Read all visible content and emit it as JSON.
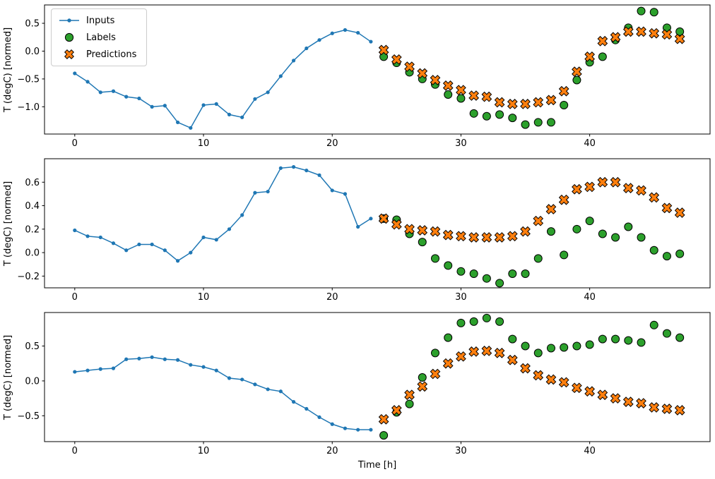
{
  "figure": {
    "xlabel": "Time [h]",
    "background": "#ffffff",
    "axes_edge_color": "#000000",
    "legend": [
      {
        "label": "Inputs",
        "marker": "line-with-dot"
      },
      {
        "label": "Labels",
        "marker": "filled-circle"
      },
      {
        "label": "Predictions",
        "marker": "filled-x"
      }
    ],
    "colors": {
      "inputs": "#1f77b4",
      "labels": "#2ca02c",
      "predictions": "#ff7f0e",
      "marker_edge": "#000000"
    }
  },
  "chart_data": [
    {
      "type": "line",
      "title": "",
      "ylabel": "T (degC) [normed]",
      "xlim": [
        -2.35,
        49.35
      ],
      "ylim": [
        -1.49,
        0.83
      ],
      "xticks": [
        0,
        10,
        20,
        30,
        40
      ],
      "yticks": [
        0.5,
        0.0,
        -0.5,
        -1.0
      ],
      "grid": false,
      "series": [
        {
          "name": "Inputs",
          "style": "line-with-dots",
          "x": [
            0,
            1,
            2,
            3,
            4,
            5,
            6,
            7,
            8,
            9,
            10,
            11,
            12,
            13,
            14,
            15,
            16,
            17,
            18,
            19,
            20,
            21,
            22,
            23
          ],
          "y": [
            -0.4,
            -0.55,
            -0.74,
            -0.72,
            -0.82,
            -0.85,
            -1.0,
            -0.98,
            -1.28,
            -1.38,
            -0.97,
            -0.95,
            -1.14,
            -1.19,
            -0.86,
            -0.74,
            -0.45,
            -0.17,
            0.05,
            0.2,
            0.32,
            0.38,
            0.33,
            0.17
          ]
        },
        {
          "name": "Labels",
          "style": "scatter-circle",
          "x": [
            24,
            25,
            26,
            27,
            28,
            29,
            30,
            31,
            32,
            33,
            34,
            35,
            36,
            37,
            38,
            39,
            40,
            41,
            42,
            43,
            44,
            45,
            46,
            47
          ],
          "y": [
            -0.1,
            -0.21,
            -0.38,
            -0.5,
            -0.6,
            -0.78,
            -0.85,
            -1.12,
            -1.17,
            -1.14,
            -1.2,
            -1.32,
            -1.28,
            -1.28,
            -0.97,
            -0.52,
            -0.2,
            -0.1,
            0.2,
            0.42,
            0.72,
            0.7,
            0.42,
            0.35
          ]
        },
        {
          "name": "Predictions",
          "style": "scatter-x",
          "x": [
            24,
            25,
            26,
            27,
            28,
            29,
            30,
            31,
            32,
            33,
            34,
            35,
            36,
            37,
            38,
            39,
            40,
            41,
            42,
            43,
            44,
            45,
            46,
            47
          ],
          "y": [
            0.02,
            -0.15,
            -0.28,
            -0.4,
            -0.52,
            -0.62,
            -0.7,
            -0.8,
            -0.82,
            -0.92,
            -0.95,
            -0.95,
            -0.92,
            -0.88,
            -0.72,
            -0.37,
            -0.1,
            0.18,
            0.25,
            0.35,
            0.35,
            0.32,
            0.3,
            0.22
          ]
        }
      ]
    },
    {
      "type": "line",
      "title": "",
      "ylabel": "T (degC) [normed]",
      "xlim": [
        -2.35,
        49.35
      ],
      "ylim": [
        -0.3,
        0.8
      ],
      "xticks": [
        0,
        10,
        20,
        30,
        40
      ],
      "yticks": [
        0.6,
        0.4,
        0.2,
        0.0,
        -0.2
      ],
      "grid": false,
      "series": [
        {
          "name": "Inputs",
          "style": "line-with-dots",
          "x": [
            0,
            1,
            2,
            3,
            4,
            5,
            6,
            7,
            8,
            9,
            10,
            11,
            12,
            13,
            14,
            15,
            16,
            17,
            18,
            19,
            20,
            21,
            22,
            23
          ],
          "y": [
            0.19,
            0.14,
            0.13,
            0.08,
            0.02,
            0.07,
            0.07,
            0.02,
            -0.07,
            0.0,
            0.13,
            0.11,
            0.2,
            0.32,
            0.51,
            0.52,
            0.72,
            0.73,
            0.7,
            0.66,
            0.53,
            0.5,
            0.22,
            0.29
          ]
        },
        {
          "name": "Labels",
          "style": "scatter-circle",
          "x": [
            24,
            25,
            26,
            27,
            28,
            29,
            30,
            31,
            32,
            33,
            34,
            35,
            36,
            37,
            38,
            39,
            40,
            41,
            42,
            43,
            44,
            45,
            46,
            47
          ],
          "y": [
            0.29,
            0.28,
            0.16,
            0.09,
            -0.05,
            -0.11,
            -0.16,
            -0.18,
            -0.22,
            -0.26,
            -0.18,
            -0.18,
            -0.05,
            0.18,
            -0.02,
            0.2,
            0.27,
            0.16,
            0.13,
            0.22,
            0.13,
            0.02,
            -0.03,
            -0.01
          ]
        },
        {
          "name": "Predictions",
          "style": "scatter-x",
          "x": [
            24,
            25,
            26,
            27,
            28,
            29,
            30,
            31,
            32,
            33,
            34,
            35,
            36,
            37,
            38,
            39,
            40,
            41,
            42,
            43,
            44,
            45,
            46,
            47
          ],
          "y": [
            0.29,
            0.24,
            0.2,
            0.19,
            0.18,
            0.15,
            0.14,
            0.13,
            0.13,
            0.13,
            0.14,
            0.18,
            0.27,
            0.37,
            0.45,
            0.54,
            0.56,
            0.6,
            0.6,
            0.55,
            0.53,
            0.47,
            0.38,
            0.34
          ]
        }
      ]
    },
    {
      "type": "line",
      "title": "",
      "ylabel": "T (degC) [normed]",
      "xlim": [
        -2.35,
        49.35
      ],
      "ylim": [
        -0.87,
        0.98
      ],
      "xticks": [
        0,
        10,
        20,
        30,
        40
      ],
      "yticks": [
        0.5,
        0.0,
        -0.5
      ],
      "grid": false,
      "series": [
        {
          "name": "Inputs",
          "style": "line-with-dots",
          "x": [
            0,
            1,
            2,
            3,
            4,
            5,
            6,
            7,
            8,
            9,
            10,
            11,
            12,
            13,
            14,
            15,
            16,
            17,
            18,
            19,
            20,
            21,
            22,
            23
          ],
          "y": [
            0.13,
            0.15,
            0.17,
            0.18,
            0.31,
            0.32,
            0.34,
            0.31,
            0.3,
            0.23,
            0.2,
            0.15,
            0.04,
            0.02,
            -0.05,
            -0.12,
            -0.15,
            -0.3,
            -0.4,
            -0.52,
            -0.62,
            -0.68,
            -0.7,
            -0.7
          ]
        },
        {
          "name": "Labels",
          "style": "scatter-circle",
          "x": [
            24,
            25,
            26,
            27,
            28,
            29,
            30,
            31,
            32,
            33,
            34,
            35,
            36,
            37,
            38,
            39,
            40,
            41,
            42,
            43,
            44,
            45,
            46,
            47
          ],
          "y": [
            -0.78,
            -0.45,
            -0.33,
            0.05,
            0.4,
            0.62,
            0.83,
            0.85,
            0.9,
            0.85,
            0.6,
            0.5,
            0.4,
            0.47,
            0.48,
            0.5,
            0.52,
            0.6,
            0.6,
            0.58,
            0.55,
            0.8,
            0.68,
            0.62
          ]
        },
        {
          "name": "Predictions",
          "style": "scatter-x",
          "x": [
            24,
            25,
            26,
            27,
            28,
            29,
            30,
            31,
            32,
            33,
            34,
            35,
            36,
            37,
            38,
            39,
            40,
            41,
            42,
            43,
            44,
            45,
            46,
            47
          ],
          "y": [
            -0.55,
            -0.42,
            -0.2,
            -0.08,
            0.1,
            0.25,
            0.35,
            0.42,
            0.43,
            0.4,
            0.3,
            0.18,
            0.08,
            0.02,
            -0.02,
            -0.1,
            -0.15,
            -0.2,
            -0.25,
            -0.3,
            -0.32,
            -0.38,
            -0.4,
            -0.42
          ]
        }
      ]
    }
  ]
}
